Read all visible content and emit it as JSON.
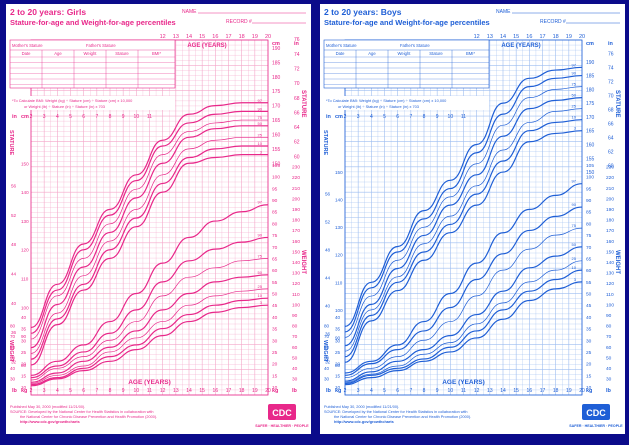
{
  "colors": {
    "background": "#0b0b8a",
    "girls_accent": "#e8288a",
    "girls_grid": "#f4a6c9",
    "boys_accent": "#1f5fd6",
    "boys_grid": "#9dbdf0",
    "paper": "#ffffff"
  },
  "charts": [
    {
      "id": "girls",
      "title": "2 to 20 years: Girls",
      "subtitle": "Stature-for-age and Weight-for-age percentiles",
      "name_label": "NAME",
      "record_label": "RECORD #",
      "mother_stature": "Mother's Stature",
      "father_stature": "Father's Stature",
      "table_headers": [
        "Date",
        "Age",
        "Weight",
        "Stature",
        "BMI*"
      ],
      "bmi_note_1": "*To Calculate BMI: Weight (kg) ÷ Stature (cm) ÷ Stature (cm) x 10,000",
      "bmi_note_2": "or Weight (lb) ÷ Stature (in) ÷ Stature (in) x 703",
      "age_label": "AGE (YEARS)",
      "stature_label": "STATURE",
      "weight_label": "WEIGHT",
      "unit_cm": "cm",
      "unit_in": "in",
      "unit_kg": "kg",
      "unit_lb": "lb",
      "footer_1": "Published May 30, 2000 (modified 11/21/00).",
      "footer_2": "SOURCE: Developed by the National Center for Health Statistics in collaboration with",
      "footer_3": "the National Center for Chronic Disease Prevention and Health Promotion (2000).",
      "footer_4": "http://www.cdc.gov/growthcharts",
      "cdc_logo": "CDC",
      "cdc_tag": "SAFER · HEALTHIER · PEOPLE"
    },
    {
      "id": "boys",
      "title": "2 to 20 years: Boys",
      "subtitle": "Stature-for-age and Weight-for-age percentiles",
      "name_label": "NAME",
      "record_label": "RECORD #",
      "mother_stature": "Mother's Stature",
      "father_stature": "Father's Stature",
      "table_headers": [
        "Date",
        "Age",
        "Weight",
        "Stature",
        "BMI*"
      ],
      "bmi_note_1": "*To Calculate BMI: Weight (kg) ÷ Stature (cm) ÷ Stature (cm) x 10,000",
      "bmi_note_2": "or Weight (lb) ÷ Stature (in) ÷ Stature (in) x 703",
      "age_label": "AGE (YEARS)",
      "stature_label": "STATURE",
      "weight_label": "WEIGHT",
      "unit_cm": "cm",
      "unit_in": "in",
      "unit_kg": "kg",
      "unit_lb": "lb",
      "footer_1": "Published May 30, 2000 (modified 11/21/00).",
      "footer_2": "SOURCE: Developed by the National Center for Health Statistics in collaboration with",
      "footer_3": "the National Center for Chronic Disease Prevention and Health Promotion (2000).",
      "footer_4": "http://www.cdc.gov/growthcharts",
      "cdc_logo": "CDC",
      "cdc_tag": "SAFER · HEALTHIER · PEOPLE"
    }
  ],
  "chart_data": [
    {
      "type": "line",
      "title": "2 to 20 years: Girls",
      "subtitle": "Stature-for-age and Weight-for-age percentiles",
      "xlabel": "AGE (YEARS)",
      "x_ticks": [
        2,
        3,
        4,
        5,
        6,
        7,
        8,
        9,
        10,
        11,
        12,
        13,
        14,
        15,
        16,
        17,
        18,
        19,
        20
      ],
      "stature_ylim_cm": [
        80,
        190
      ],
      "weight_ylim_kg": [
        10,
        105
      ],
      "grid": true,
      "stature_axis_cm": [
        150,
        155,
        160,
        165,
        170,
        175,
        180,
        185,
        190
      ],
      "stature_axis_in": [
        60,
        62,
        64,
        66,
        68,
        70,
        72,
        74,
        76
      ],
      "weight_axis_kg": [
        10,
        15,
        20,
        25,
        30,
        35,
        40,
        45,
        50,
        55,
        60,
        65,
        70,
        75,
        80,
        85,
        90,
        95,
        100,
        105
      ],
      "weight_axis_lb": [
        30,
        40,
        50,
        60,
        70,
        80,
        90,
        100,
        110,
        120,
        130,
        140,
        150,
        160,
        170,
        180,
        190,
        200,
        210,
        220,
        230
      ],
      "x": [
        2,
        4,
        6,
        8,
        10,
        12,
        14,
        16,
        18,
        20
      ],
      "stature_series": [
        {
          "name": "97",
          "values": [
            93,
            108,
            122,
            134,
            146,
            158,
            167,
            170,
            171,
            171
          ]
        },
        {
          "name": "90",
          "values": [
            91,
            106,
            120,
            132,
            144,
            156,
            164,
            167,
            168,
            168
          ]
        },
        {
          "name": "75",
          "values": [
            89,
            104,
            117,
            129,
            141,
            153,
            161,
            164,
            165,
            165
          ]
        },
        {
          "name": "50",
          "values": [
            86,
            101,
            114,
            126,
            138,
            150,
            159,
            162,
            163,
            163
          ]
        },
        {
          "name": "25",
          "values": [
            84,
            98,
            111,
            123,
            134,
            146,
            155,
            158,
            159,
            159
          ]
        },
        {
          "name": "10",
          "values": [
            82,
            96,
            108,
            120,
            131,
            143,
            152,
            155,
            156,
            156
          ]
        },
        {
          "name": "3",
          "values": [
            80,
            94,
            106,
            117,
            128,
            140,
            150,
            152,
            153,
            153
          ]
        }
      ],
      "weight_series": [
        {
          "name": "97",
          "values": [
            15,
            21,
            28,
            38,
            50,
            63,
            74,
            81,
            85,
            88
          ]
        },
        {
          "name": "90",
          "values": [
            14,
            19,
            25,
            33,
            43,
            55,
            64,
            69,
            72,
            74
          ]
        },
        {
          "name": "75",
          "values": [
            13,
            18,
            23,
            30,
            38,
            49,
            57,
            61,
            64,
            65
          ]
        },
        {
          "name": "50",
          "values": [
            12,
            16,
            21,
            27,
            34,
            43,
            50,
            55,
            57,
            58
          ]
        },
        {
          "name": "25",
          "values": [
            11.5,
            15,
            19,
            25,
            31,
            38,
            45,
            49,
            51,
            52
          ]
        },
        {
          "name": "10",
          "values": [
            11,
            14,
            18,
            23,
            28,
            35,
            41,
            45,
            47,
            48
          ]
        },
        {
          "name": "3",
          "values": [
            10.5,
            13.5,
            17,
            21,
            26,
            32,
            38,
            42,
            44,
            45
          ]
        }
      ]
    },
    {
      "type": "line",
      "title": "2 to 20 years: Boys",
      "subtitle": "Stature-for-age and Weight-for-age percentiles",
      "xlabel": "AGE (YEARS)",
      "x_ticks": [
        2,
        3,
        4,
        5,
        6,
        7,
        8,
        9,
        10,
        11,
        12,
        13,
        14,
        15,
        16,
        17,
        18,
        19,
        20
      ],
      "stature_ylim_cm": [
        80,
        195
      ],
      "weight_ylim_kg": [
        10,
        105
      ],
      "grid": true,
      "stature_axis_cm": [
        150,
        155,
        160,
        165,
        170,
        175,
        180,
        185,
        190
      ],
      "stature_axis_in": [
        60,
        62,
        64,
        66,
        68,
        70,
        72,
        74,
        76
      ],
      "weight_axis_kg": [
        10,
        15,
        20,
        25,
        30,
        35,
        40,
        45,
        50,
        55,
        60,
        65,
        70,
        75,
        80,
        85,
        90,
        95,
        100,
        105
      ],
      "weight_axis_lb": [
        30,
        40,
        50,
        60,
        70,
        80,
        90,
        100,
        110,
        120,
        130,
        140,
        150,
        160,
        170,
        180,
        190,
        200,
        210,
        220,
        230
      ],
      "x": [
        2,
        4,
        6,
        8,
        10,
        12,
        14,
        16,
        18,
        20
      ],
      "stature_series": [
        {
          "name": "97",
          "values": [
            94,
            110,
            123,
            136,
            147,
            160,
            175,
            184,
            187,
            188
          ]
        },
        {
          "name": "90",
          "values": [
            92,
            108,
            121,
            133,
            144,
            157,
            171,
            181,
            184,
            185
          ]
        },
        {
          "name": "75",
          "values": [
            90,
            105,
            118,
            130,
            141,
            153,
            167,
            177,
            180,
            181
          ]
        },
        {
          "name": "50",
          "values": [
            87,
            102,
            115,
            127,
            138,
            149,
            163,
            173,
            176,
            177
          ]
        },
        {
          "name": "25",
          "values": [
            85,
            100,
            112,
            124,
            134,
            145,
            158,
            168,
            172,
            173
          ]
        },
        {
          "name": "10",
          "values": [
            83,
            98,
            110,
            121,
            131,
            142,
            154,
            165,
            168,
            169
          ]
        },
        {
          "name": "3",
          "values": [
            81,
            96,
            107,
            118,
            128,
            138,
            150,
            161,
            164,
            165
          ]
        }
      ],
      "weight_series": [
        {
          "name": "97",
          "values": [
            16,
            21,
            28,
            38,
            50,
            63,
            76,
            86,
            92,
            97
          ]
        },
        {
          "name": "90",
          "values": [
            15,
            20,
            26,
            34,
            44,
            56,
            67,
            77,
            83,
            87
          ]
        },
        {
          "name": "75",
          "values": [
            14,
            18,
            23,
            30,
            38,
            49,
            60,
            69,
            75,
            78
          ]
        },
        {
          "name": "50",
          "values": [
            12.5,
            16.5,
            21,
            26,
            32,
            41,
            51,
            61,
            66,
            70
          ]
        },
        {
          "name": "25",
          "values": [
            12,
            15.5,
            19,
            24,
            29,
            37,
            46,
            55,
            60,
            64
          ]
        },
        {
          "name": "10",
          "values": [
            11.5,
            15,
            18,
            22,
            27,
            34,
            43,
            51,
            56,
            60
          ]
        },
        {
          "name": "3",
          "values": [
            11,
            14,
            17,
            21,
            25,
            31,
            39,
            47,
            52,
            55
          ]
        }
      ]
    }
  ]
}
